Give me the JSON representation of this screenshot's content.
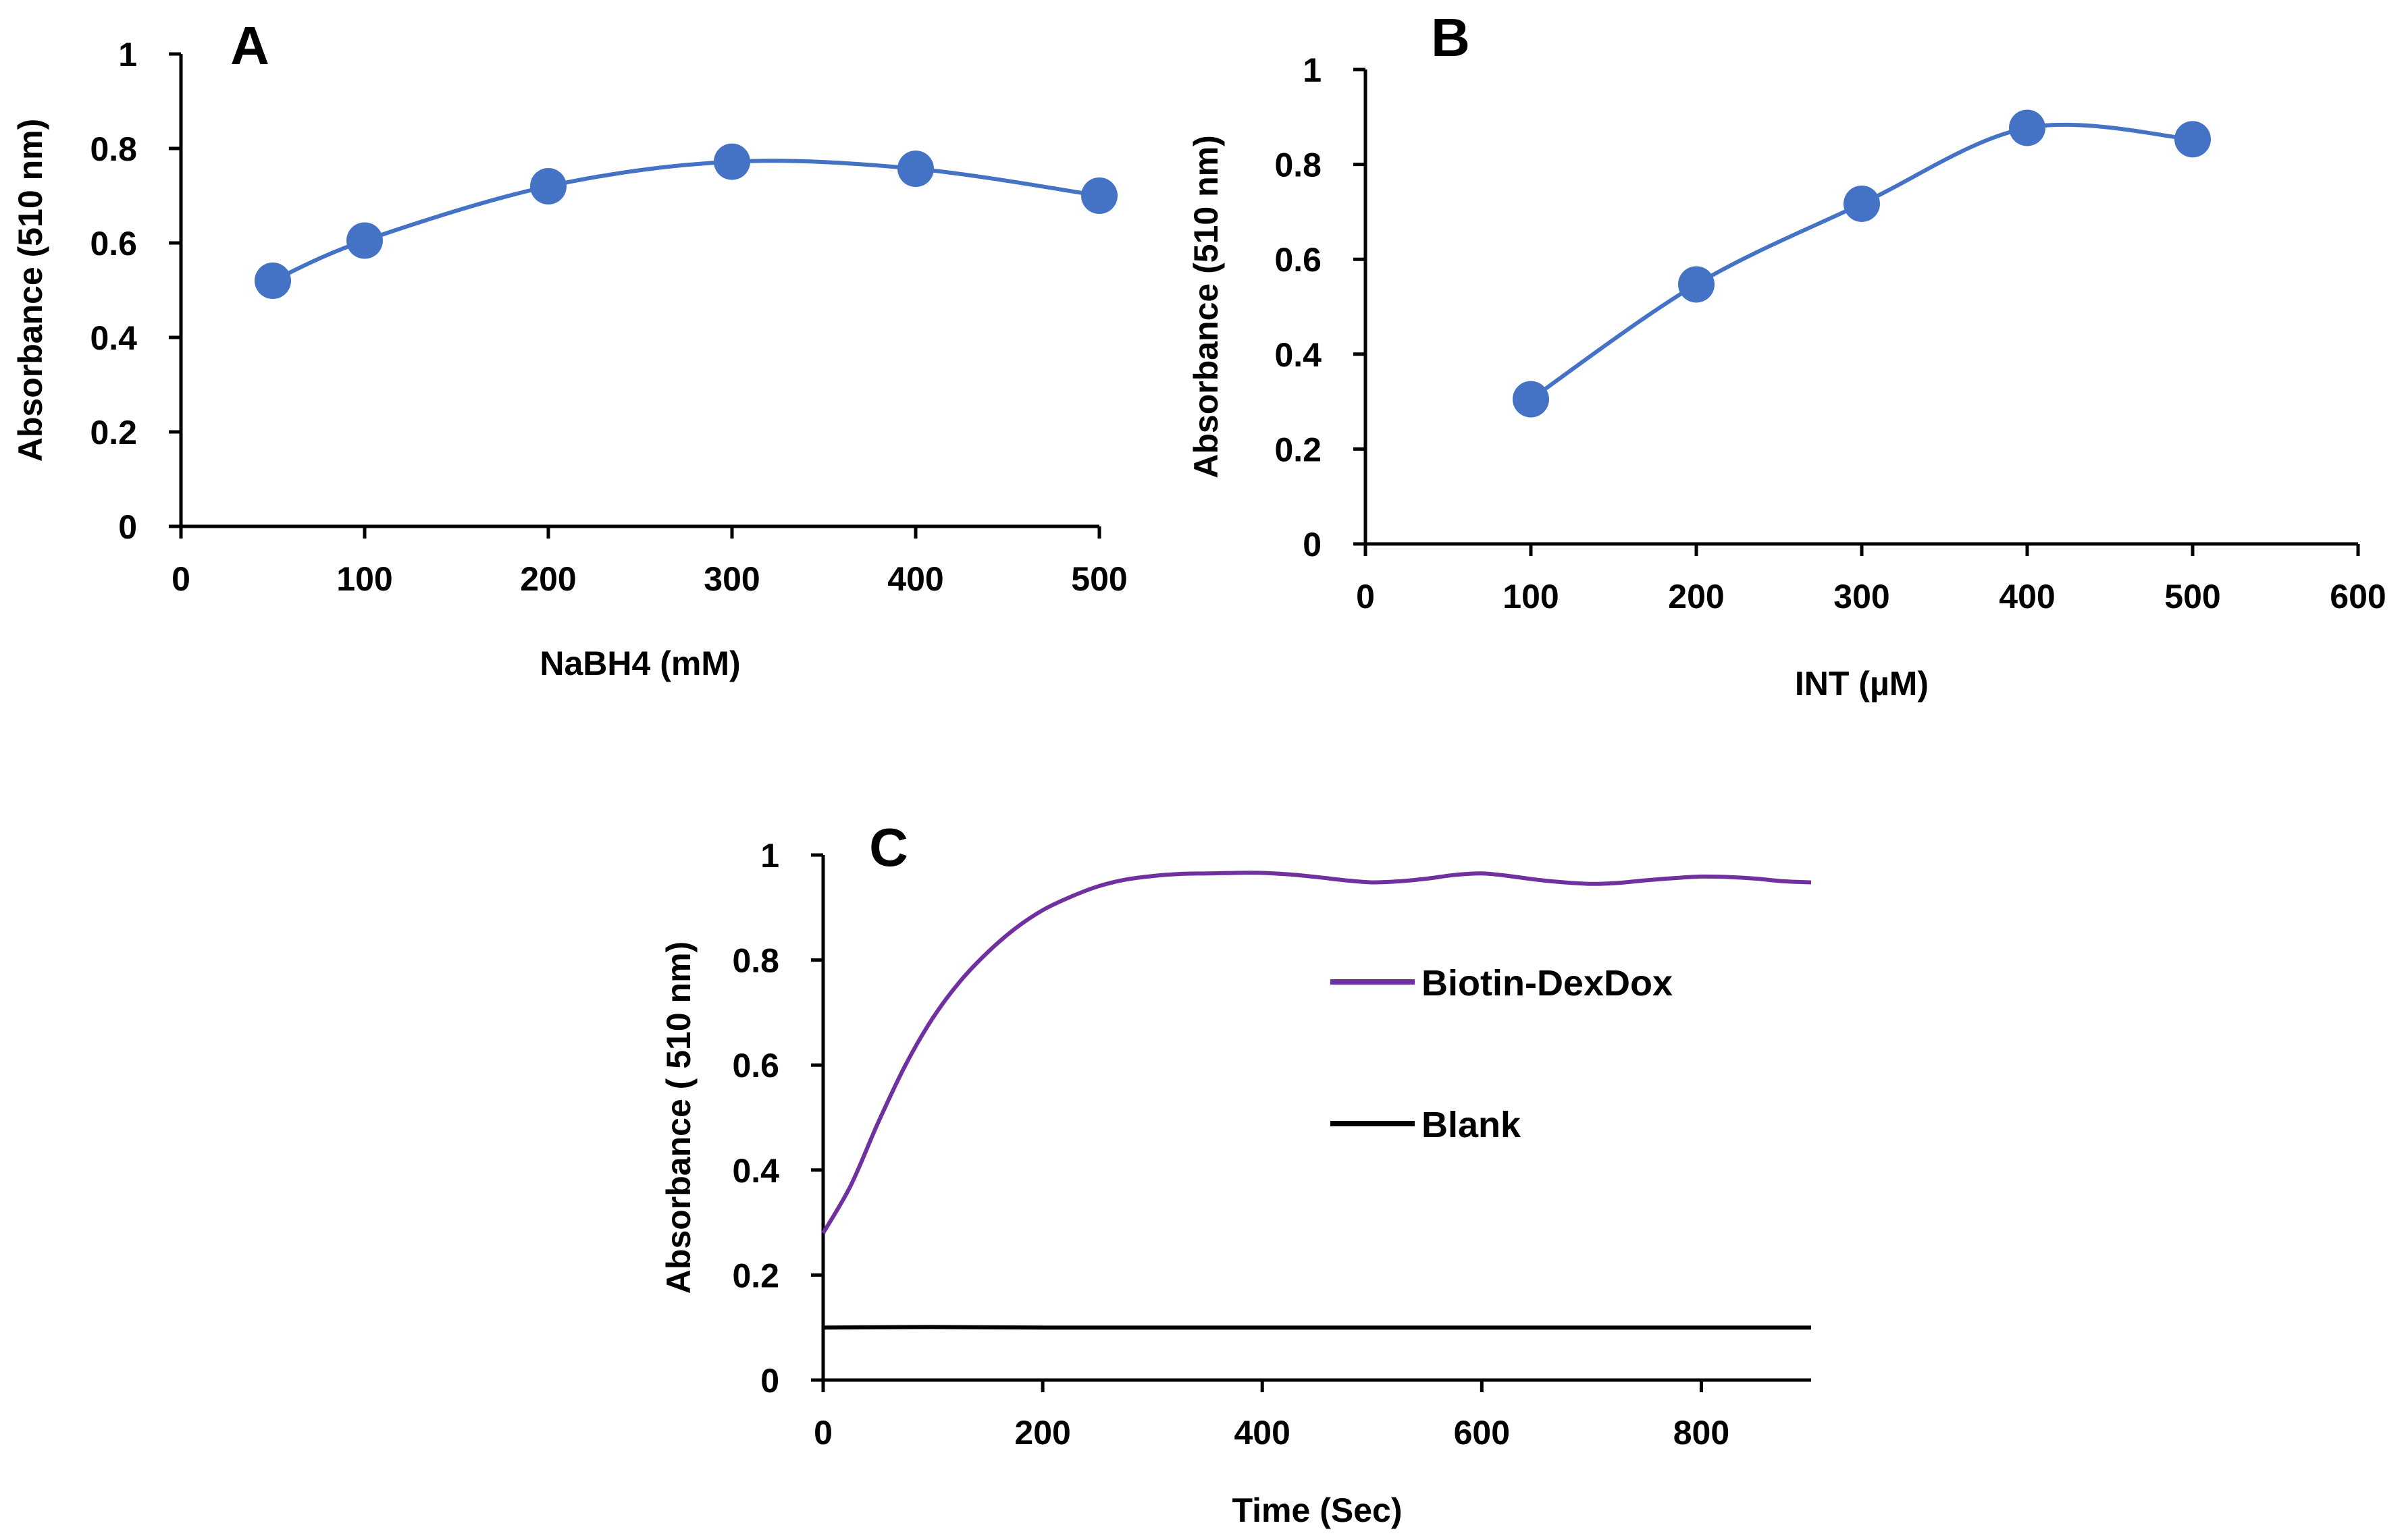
{
  "chart_data": [
    {
      "panel": "A",
      "type": "line",
      "xlabel": "NaBH4 (mM)",
      "ylabel": "Absorbance (510 nm)",
      "xlim": [
        0,
        500
      ],
      "ylim": [
        0,
        1
      ],
      "xticks": [
        "0",
        "100",
        "200",
        "300",
        "400",
        "500"
      ],
      "yticks": [
        "0",
        "0.2",
        "0.4",
        "0.6",
        "0.8",
        "1"
      ],
      "series": [
        {
          "name": "NaBH4",
          "color": "#4472C4",
          "markers": true,
          "x": [
            50,
            100,
            200,
            300,
            400,
            500
          ],
          "y": [
            0.52,
            0.605,
            0.72,
            0.772,
            0.757,
            0.7
          ]
        }
      ]
    },
    {
      "panel": "B",
      "type": "line",
      "xlabel": "INT (µM)",
      "ylabel": "Absorbance (510 nm)",
      "xlim": [
        0,
        600
      ],
      "ylim": [
        0,
        1
      ],
      "xticks": [
        "0",
        "100",
        "200",
        "300",
        "400",
        "500",
        "600"
      ],
      "yticks": [
        "0",
        "0.2",
        "0.4",
        "0.6",
        "0.8",
        "1"
      ],
      "series": [
        {
          "name": "INT",
          "color": "#4472C4",
          "markers": true,
          "x": [
            100,
            200,
            300,
            400,
            500
          ],
          "y": [
            0.305,
            0.547,
            0.717,
            0.877,
            0.853
          ]
        }
      ]
    },
    {
      "panel": "C",
      "type": "line",
      "xlabel": "Time (Sec)",
      "ylabel": "Absorbance ( 510 nm)",
      "xlim": [
        0,
        900
      ],
      "ylim": [
        0,
        1
      ],
      "xticks": [
        "0",
        "200",
        "400",
        "600",
        "800"
      ],
      "yticks": [
        "0",
        "0.2",
        "0.4",
        "0.6",
        "0.8",
        "1"
      ],
      "series": [
        {
          "name": "Biotin-DexDox",
          "color": "#7030A0",
          "markers": false,
          "x": [
            0,
            25,
            50,
            75,
            100,
            125,
            150,
            175,
            200,
            225,
            250,
            275,
            300,
            325,
            350,
            375,
            400,
            425,
            450,
            475,
            500,
            525,
            550,
            575,
            600,
            625,
            650,
            675,
            700,
            725,
            750,
            775,
            800,
            825,
            850,
            875,
            900
          ],
          "y": [
            0.28,
            0.37,
            0.49,
            0.6,
            0.69,
            0.76,
            0.815,
            0.86,
            0.895,
            0.92,
            0.94,
            0.953,
            0.96,
            0.964,
            0.965,
            0.966,
            0.966,
            0.963,
            0.958,
            0.952,
            0.948,
            0.95,
            0.955,
            0.962,
            0.965,
            0.96,
            0.953,
            0.948,
            0.945,
            0.947,
            0.952,
            0.956,
            0.959,
            0.958,
            0.955,
            0.95,
            0.948
          ]
        },
        {
          "name": "Blank",
          "color": "#000000",
          "markers": false,
          "x": [
            0,
            100,
            200,
            300,
            400,
            500,
            600,
            700,
            800,
            900
          ],
          "y": [
            0.1,
            0.101,
            0.1,
            0.1,
            0.1,
            0.1,
            0.1,
            0.1,
            0.1,
            0.1
          ]
        }
      ]
    }
  ]
}
